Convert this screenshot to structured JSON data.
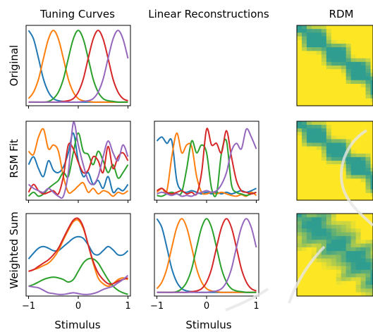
{
  "column_titles": {
    "tuning": "Tuning Curves",
    "linear": "Linear Reconstructions",
    "rdm": "RDM"
  },
  "row_labels": {
    "original": "Original",
    "rsm_fit": "RSM Fit",
    "weighted_sum": "Weighted Sum"
  },
  "x_axis": {
    "label": "Stimulus",
    "ticks": [
      -1,
      0,
      1
    ]
  },
  "colors": {
    "series": [
      "#1f77b4",
      "#ff7f0e",
      "#2ca02c",
      "#d62728",
      "#9467bd"
    ],
    "rdm_low": "#2f9d8f",
    "rdm_high": "#fde725"
  },
  "chart_data": [
    {
      "type": "line",
      "panel": "Original / Tuning Curves",
      "x": [
        -1.0,
        -0.9,
        -0.8,
        -0.7,
        -0.6,
        -0.5,
        -0.4,
        -0.3,
        -0.2,
        -0.1,
        0.0,
        0.1,
        0.2,
        0.3,
        0.4,
        0.5,
        0.6,
        0.7,
        0.8,
        0.9,
        1.0
      ],
      "xlim": [
        -1.05,
        1.05
      ],
      "ylim": [
        -0.05,
        1.07
      ],
      "series": [
        {
          "values": [
            1.0,
            0.88,
            0.61,
            0.32,
            0.14,
            0.05,
            0.02,
            0.01,
            0.0,
            0.0,
            0.0,
            0.0,
            0.0,
            0.0,
            0.0,
            0.0,
            0.0,
            0.0,
            0.0,
            0.0,
            0.0
          ]
        },
        {
          "values": [
            0.05,
            0.14,
            0.32,
            0.61,
            0.88,
            1.0,
            0.88,
            0.61,
            0.32,
            0.14,
            0.05,
            0.02,
            0.01,
            0.0,
            0.0,
            0.0,
            0.0,
            0.0,
            0.0,
            0.0,
            0.0
          ]
        },
        {
          "values": [
            0.0,
            0.0,
            0.0,
            0.0,
            0.01,
            0.05,
            0.14,
            0.32,
            0.61,
            0.88,
            1.0,
            0.88,
            0.61,
            0.32,
            0.14,
            0.05,
            0.02,
            0.01,
            0.0,
            0.0,
            0.0
          ]
        },
        {
          "values": [
            0.0,
            0.0,
            0.0,
            0.0,
            0.0,
            0.0,
            0.0,
            0.01,
            0.02,
            0.05,
            0.14,
            0.32,
            0.61,
            0.88,
            1.0,
            0.88,
            0.61,
            0.32,
            0.14,
            0.05,
            0.02
          ]
        },
        {
          "values": [
            0.0,
            0.0,
            0.0,
            0.0,
            0.0,
            0.0,
            0.0,
            0.0,
            0.0,
            0.0,
            0.0,
            0.01,
            0.02,
            0.05,
            0.14,
            0.32,
            0.61,
            0.88,
            1.0,
            0.88,
            0.61
          ]
        }
      ]
    },
    {
      "type": "line",
      "panel": "RSM Fit / Tuning Curves",
      "x": [
        -1.0,
        -0.9,
        -0.8,
        -0.7,
        -0.6,
        -0.5,
        -0.4,
        -0.3,
        -0.2,
        -0.1,
        0.0,
        0.1,
        0.2,
        0.3,
        0.4,
        0.5,
        0.6,
        0.7,
        0.8,
        0.9,
        1.0
      ],
      "xlim": [
        -1.05,
        1.05
      ],
      "ylim": [
        0.0,
        1.0
      ],
      "series": [
        {
          "values": [
            0.45,
            0.55,
            0.4,
            0.3,
            0.5,
            0.38,
            0.35,
            0.42,
            0.6,
            0.85,
            0.5,
            0.3,
            0.35,
            0.2,
            0.25,
            0.15,
            0.3,
            0.1,
            0.15,
            0.12,
            0.2
          ]
        },
        {
          "values": [
            0.62,
            0.58,
            0.8,
            0.9,
            0.65,
            0.7,
            0.62,
            0.3,
            0.1,
            0.12,
            0.18,
            0.22,
            0.1,
            0.15,
            0.08,
            0.12,
            0.1,
            0.05,
            0.1,
            0.08,
            0.12
          ]
        },
        {
          "values": [
            0.05,
            0.1,
            0.05,
            0.08,
            0.15,
            0.2,
            0.25,
            0.35,
            0.3,
            0.6,
            0.85,
            0.62,
            0.58,
            0.45,
            0.62,
            0.5,
            0.35,
            0.45,
            0.28,
            0.35,
            0.45
          ]
        },
        {
          "values": [
            0.1,
            0.2,
            0.12,
            0.08,
            0.1,
            0.12,
            0.08,
            0.3,
            0.7,
            0.65,
            0.48,
            0.35,
            0.38,
            0.55,
            0.5,
            0.35,
            0.68,
            0.4,
            0.55,
            0.6,
            0.5
          ]
        },
        {
          "values": [
            0.2,
            0.15,
            0.12,
            0.1,
            0.15,
            0.1,
            0.05,
            0.05,
            0.35,
            0.98,
            0.7,
            0.45,
            0.25,
            0.2,
            0.3,
            0.55,
            0.75,
            0.6,
            0.5,
            0.7,
            0.55
          ]
        }
      ]
    },
    {
      "type": "line",
      "panel": "RSM Fit / Linear Reconstructions",
      "x": [
        -1.0,
        -0.9,
        -0.8,
        -0.7,
        -0.6,
        -0.5,
        -0.4,
        -0.3,
        -0.2,
        -0.1,
        0.0,
        0.1,
        0.2,
        0.3,
        0.4,
        0.5,
        0.6,
        0.7,
        0.8,
        0.9,
        1.0
      ],
      "xlim": [
        -1.05,
        1.05
      ],
      "ylim": [
        0.0,
        1.0
      ],
      "series": [
        {
          "values": [
            0.75,
            0.8,
            0.72,
            0.75,
            0.25,
            0.12,
            0.1,
            0.12,
            0.1,
            0.08,
            0.1,
            0.08,
            0.1,
            0.08,
            0.1,
            0.08,
            0.1,
            0.12,
            0.1,
            0.12,
            0.15
          ]
        },
        {
          "values": [
            0.1,
            0.15,
            0.12,
            0.55,
            0.85,
            0.6,
            0.7,
            0.68,
            0.3,
            0.1,
            0.08,
            0.1,
            0.08,
            0.1,
            0.08,
            0.06,
            0.05,
            0.07,
            0.05,
            0.1,
            0.06
          ]
        },
        {
          "values": [
            0.06,
            0.05,
            0.08,
            0.1,
            0.08,
            0.1,
            0.4,
            0.75,
            0.6,
            0.7,
            0.6,
            0.15,
            0.08,
            0.6,
            0.75,
            0.2,
            0.1,
            0.08,
            0.06,
            0.08,
            0.1
          ]
        },
        {
          "values": [
            0.12,
            0.15,
            0.1,
            0.08,
            0.1,
            0.12,
            0.08,
            0.1,
            0.08,
            0.35,
            0.9,
            0.7,
            0.72,
            0.6,
            0.88,
            0.55,
            0.25,
            0.12,
            0.1,
            0.08,
            0.1
          ]
        },
        {
          "values": [
            0.08,
            0.1,
            0.08,
            0.06,
            0.08,
            0.05,
            0.06,
            0.05,
            0.08,
            0.1,
            0.12,
            0.1,
            0.12,
            0.2,
            0.35,
            0.62,
            0.72,
            0.65,
            0.9,
            0.8,
            0.65
          ]
        }
      ]
    },
    {
      "type": "line",
      "panel": "Weighted Sum / Tuning Curves",
      "x": [
        -1.0,
        -0.9,
        -0.8,
        -0.7,
        -0.6,
        -0.5,
        -0.4,
        -0.3,
        -0.2,
        -0.1,
        0.0,
        0.1,
        0.2,
        0.3,
        0.4,
        0.5,
        0.6,
        0.7,
        0.8,
        0.9,
        1.0
      ],
      "xlim": [
        -1.05,
        1.05
      ],
      "ylim": [
        0.0,
        1.0
      ],
      "series": [
        {
          "values": [
            0.45,
            0.52,
            0.58,
            0.6,
            0.58,
            0.55,
            0.55,
            0.6,
            0.65,
            0.7,
            0.72,
            0.7,
            0.62,
            0.52,
            0.5,
            0.55,
            0.6,
            0.56,
            0.5,
            0.5,
            0.55
          ]
        },
        {
          "values": [
            0.3,
            0.32,
            0.34,
            0.37,
            0.4,
            0.46,
            0.55,
            0.68,
            0.8,
            0.9,
            0.92,
            0.82,
            0.62,
            0.4,
            0.22,
            0.15,
            0.12,
            0.15,
            0.2,
            0.22,
            0.2
          ]
        },
        {
          "values": [
            0.12,
            0.14,
            0.17,
            0.2,
            0.22,
            0.23,
            0.22,
            0.2,
            0.17,
            0.2,
            0.3,
            0.4,
            0.45,
            0.45,
            0.4,
            0.3,
            0.2,
            0.12,
            0.07,
            0.04,
            0.02
          ]
        },
        {
          "values": [
            0.3,
            0.32,
            0.36,
            0.4,
            0.44,
            0.5,
            0.58,
            0.7,
            0.82,
            0.92,
            0.94,
            0.84,
            0.62,
            0.42,
            0.28,
            0.2,
            0.15,
            0.15,
            0.18,
            0.2,
            0.22
          ]
        },
        {
          "values": [
            0.12,
            0.11,
            0.1,
            0.07,
            0.04,
            0.03,
            0.02,
            0.02,
            0.03,
            0.04,
            0.03,
            0.02,
            0.02,
            0.03,
            0.05,
            0.08,
            0.1,
            0.12,
            0.16,
            0.2,
            0.25
          ]
        }
      ]
    },
    {
      "type": "line",
      "panel": "Weighted Sum / Linear Reconstructions",
      "x": [
        -1.0,
        -0.9,
        -0.8,
        -0.7,
        -0.6,
        -0.5,
        -0.4,
        -0.3,
        -0.2,
        -0.1,
        0.0,
        0.1,
        0.2,
        0.3,
        0.4,
        0.5,
        0.6,
        0.7,
        0.8,
        0.9,
        1.0
      ],
      "xlim": [
        -1.05,
        1.05
      ],
      "ylim": [
        -0.05,
        1.07
      ],
      "series": [
        {
          "values": [
            1.0,
            0.88,
            0.61,
            0.32,
            0.14,
            0.05,
            0.02,
            0.01,
            0.0,
            0.0,
            0.0,
            0.0,
            0.0,
            0.0,
            0.0,
            0.0,
            0.0,
            0.0,
            0.0,
            0.0,
            0.0
          ]
        },
        {
          "values": [
            0.05,
            0.14,
            0.32,
            0.61,
            0.88,
            1.0,
            0.88,
            0.61,
            0.32,
            0.14,
            0.05,
            0.02,
            0.01,
            0.0,
            0.0,
            0.0,
            0.0,
            0.0,
            0.0,
            0.0,
            0.0
          ]
        },
        {
          "values": [
            0.0,
            0.0,
            0.0,
            0.0,
            0.01,
            0.05,
            0.14,
            0.32,
            0.61,
            0.88,
            1.0,
            0.88,
            0.61,
            0.32,
            0.14,
            0.05,
            0.02,
            0.01,
            0.0,
            0.0,
            0.0
          ]
        },
        {
          "values": [
            0.0,
            0.0,
            0.0,
            0.0,
            0.0,
            0.0,
            0.0,
            0.01,
            0.02,
            0.05,
            0.14,
            0.32,
            0.61,
            0.88,
            1.0,
            0.88,
            0.61,
            0.32,
            0.14,
            0.05,
            0.02
          ]
        },
        {
          "values": [
            0.0,
            0.0,
            0.0,
            0.0,
            0.0,
            0.0,
            0.0,
            0.0,
            0.0,
            0.0,
            0.0,
            0.01,
            0.02,
            0.05,
            0.14,
            0.32,
            0.61,
            0.88,
            1.0,
            0.88,
            0.61
          ]
        }
      ]
    },
    {
      "type": "heatmap",
      "panel": "Original / RDM",
      "pattern": "banded diagonal"
    },
    {
      "type": "heatmap",
      "panel": "RSM Fit / RDM",
      "pattern": "banded diagonal"
    },
    {
      "type": "heatmap",
      "panel": "Weighted Sum / RDM",
      "pattern": "blurred diagonal"
    }
  ]
}
